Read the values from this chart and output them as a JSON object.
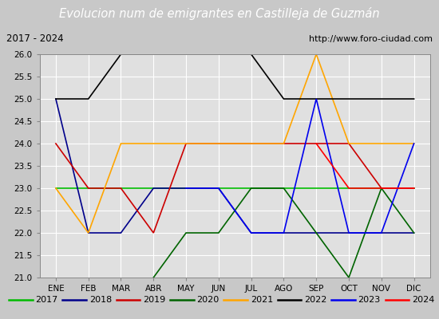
{
  "title": "Evolucion num de emigrantes en Castilleja de Guzmán",
  "subtitle_left": "2017 - 2024",
  "subtitle_right": "http://www.foro-ciudad.com",
  "months": [
    "ENE",
    "FEB",
    "MAR",
    "ABR",
    "MAY",
    "JUN",
    "JUL",
    "AGO",
    "SEP",
    "OCT",
    "NOV",
    "DIC"
  ],
  "ylim": [
    21.0,
    26.0
  ],
  "yticks": [
    21.0,
    21.5,
    22.0,
    22.5,
    23.0,
    23.5,
    24.0,
    24.5,
    25.0,
    25.5,
    26.0
  ],
  "series": {
    "2017": {
      "color": "#00bb00",
      "values": [
        23,
        23,
        23,
        23,
        23,
        23,
        23,
        23,
        23,
        23,
        23,
        23
      ]
    },
    "2018": {
      "color": "#00008b",
      "values": [
        25,
        22,
        22,
        23,
        23,
        23,
        22,
        22,
        22,
        22,
        22,
        22
      ]
    },
    "2019": {
      "color": "#cc0000",
      "values": [
        24,
        23,
        23,
        22,
        24,
        24,
        24,
        24,
        24,
        24,
        23,
        23
      ]
    },
    "2020": {
      "color": "#006400",
      "values": [
        null,
        null,
        null,
        21,
        22,
        22,
        23,
        23,
        22,
        21,
        23,
        22
      ]
    },
    "2021": {
      "color": "#ffa500",
      "values": [
        23,
        22,
        24,
        24,
        24,
        24,
        24,
        24,
        26,
        24,
        24,
        24
      ]
    },
    "2022": {
      "color": "#000000",
      "values": [
        25,
        25,
        26,
        26,
        26,
        26,
        26,
        25,
        25,
        25,
        25,
        25
      ]
    },
    "2023": {
      "color": "#0000ee",
      "values": [
        null,
        null,
        null,
        null,
        23,
        23,
        22,
        22,
        25,
        22,
        22,
        24
      ]
    },
    "2024": {
      "color": "#ff0000",
      "values": [
        null,
        null,
        null,
        null,
        null,
        null,
        null,
        null,
        24,
        23,
        23,
        23
      ]
    }
  },
  "title_bg": "#5b9bd5",
  "title_fg": "white",
  "title_fontsize": 10.5,
  "fig_bg": "#c8c8c8",
  "plot_bg": "#e0e0e0",
  "subtitle_bg": "#d8d8d8",
  "grid_color": "#ffffff",
  "tick_fontsize": 7.5,
  "legend_fontsize": 8
}
